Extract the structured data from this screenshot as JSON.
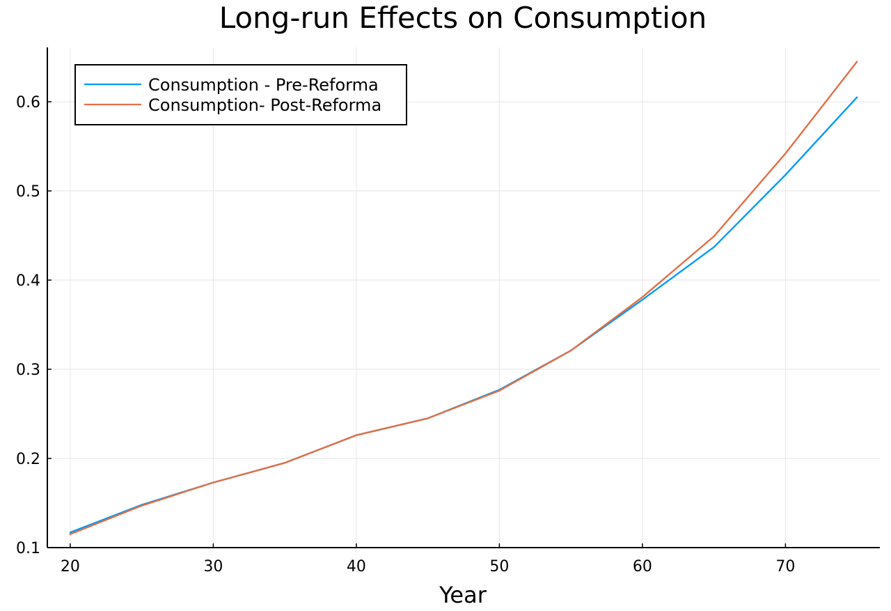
{
  "chart_data": {
    "type": "line",
    "title": "Long-run Effects on Consumption",
    "xlabel": "Year",
    "ylabel": "",
    "xlim": [
      18.4,
      76.6
    ],
    "ylim": [
      0.1,
      0.661
    ],
    "xticks": [
      20,
      30,
      40,
      50,
      60,
      70
    ],
    "yticks": [
      0.1,
      0.2,
      0.3,
      0.4,
      0.5,
      0.6
    ],
    "xtick_labels": [
      "20",
      "30",
      "40",
      "50",
      "60",
      "70"
    ],
    "ytick_labels": [
      "0.1",
      "0.2",
      "0.3",
      "0.4",
      "0.5",
      "0.6"
    ],
    "grid": true,
    "legend_position": "top-left",
    "x": [
      20,
      25,
      30,
      35,
      40,
      45,
      50,
      55,
      60,
      65,
      70,
      75
    ],
    "series": [
      {
        "name": "Consumption - Pre-Reforma",
        "color": "#009af9",
        "values": [
          0.117,
          0.148,
          0.173,
          0.195,
          0.226,
          0.245,
          0.277,
          0.321,
          0.378,
          0.437,
          0.518,
          0.605
        ]
      },
      {
        "name": "Consumption- Post-Reforma",
        "color": "#e26f46",
        "values": [
          0.115,
          0.147,
          0.173,
          0.195,
          0.226,
          0.245,
          0.276,
          0.321,
          0.381,
          0.449,
          0.542,
          0.645
        ]
      }
    ]
  }
}
